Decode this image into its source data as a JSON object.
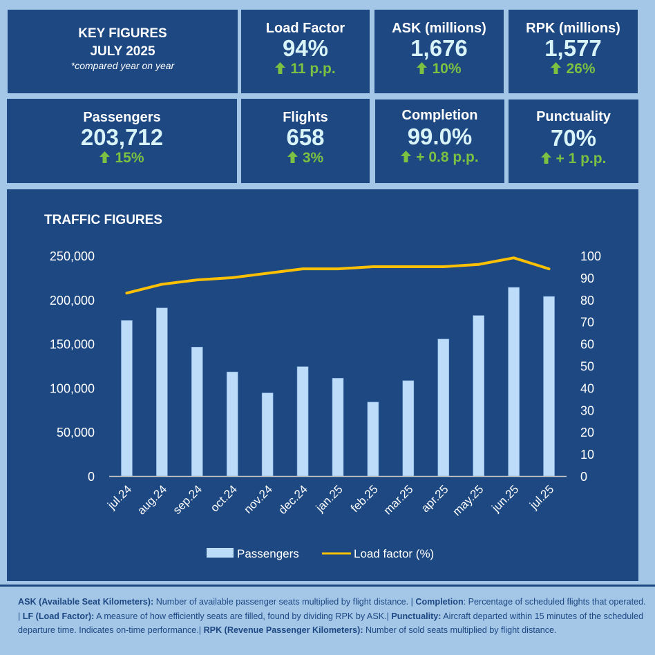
{
  "key_figures": {
    "title": "KEY FIGURES",
    "period": "JULY 2025",
    "note": "*compared year on year"
  },
  "kpis": [
    {
      "label": "Load Factor",
      "value": "94%",
      "delta": "11 p.p.",
      "trend": "up"
    },
    {
      "label": "ASK (millions)",
      "value": "1,676",
      "delta": "10%",
      "trend": "up"
    },
    {
      "label": "RPK (millions)",
      "value": "1,577",
      "delta": "26%",
      "trend": "up"
    },
    {
      "label": "Passengers",
      "value": "203,712",
      "delta": "15%",
      "trend": "up"
    },
    {
      "label": "Flights",
      "value": "658",
      "delta": "3%",
      "trend": "up"
    },
    {
      "label": "Completion",
      "value": "99.0%",
      "delta": "+ 0.8 p.p.",
      "trend": "up"
    },
    {
      "label": "Punctuality",
      "value": "70%",
      "delta": "+ 1 p.p.",
      "trend": "up"
    }
  ],
  "colors": {
    "panel": "#1d4882",
    "background": "#a4c7e8",
    "bar": "#bddcfa",
    "line": "#fbbf04",
    "positive": "#7cc142",
    "value_text": "#d9f4f8"
  },
  "chart_data": {
    "type": "bar",
    "title": "TRAFFIC FIGURES",
    "categories": [
      "jul.24",
      "aug.24",
      "sep.24",
      "oct.24",
      "nov.24",
      "dec.24",
      "jan.25",
      "feb.25",
      "mar.25",
      "apr.25",
      "may.25",
      "jun.25",
      "jul.25"
    ],
    "series": [
      {
        "name": "Passengers",
        "type": "bar",
        "axis": "left",
        "values": [
          176600,
          190700,
          146300,
          118100,
          94300,
          124100,
          111000,
          83900,
          108200,
          155400,
          182100,
          214000,
          203712
        ]
      },
      {
        "name": "Load factor (%)",
        "type": "line",
        "axis": "right",
        "values": [
          83,
          87,
          89,
          90,
          92,
          94,
          94,
          95,
          95,
          95,
          96,
          99,
          94
        ]
      }
    ],
    "y_left": {
      "min": 0,
      "max": 250000,
      "ticks": [
        "0",
        "50,000",
        "100,000",
        "150,000",
        "200,000",
        "250,000"
      ],
      "tick_values": [
        0,
        50000,
        100000,
        150000,
        200000,
        250000
      ]
    },
    "y_right": {
      "min": 0,
      "max": 100,
      "ticks": [
        "0",
        "10",
        "20",
        "30",
        "40",
        "50",
        "60",
        "70",
        "80",
        "90",
        "100"
      ],
      "tick_values": [
        0,
        10,
        20,
        30,
        40,
        50,
        60,
        70,
        80,
        90,
        100
      ]
    },
    "xlabel": "",
    "ylabel": "",
    "grid": false,
    "legend": {
      "position": "bottom",
      "items": [
        "Passengers",
        "Load factor (%)"
      ]
    }
  },
  "footer": {
    "segments": [
      {
        "bold": "ASK (Available Seat Kilometers):",
        "text": " Number of available passenger seats multiplied by flight distance. | "
      },
      {
        "bold": "Completion",
        "text": ": Percentage of scheduled flights that operated. | "
      },
      {
        "bold": "LF (Load Factor):",
        "text": " A measure of how efficiently seats are filled, found by dividing RPK by ASK.| "
      },
      {
        "bold": "Punctuality:",
        "text": " Aircraft departed within 15 minutes of the scheduled departure time. Indicates on-time performance.| "
      },
      {
        "bold": "RPK (Revenue Passenger Kilometers):",
        "text": " Number of sold seats multiplied by flight distance."
      }
    ]
  }
}
